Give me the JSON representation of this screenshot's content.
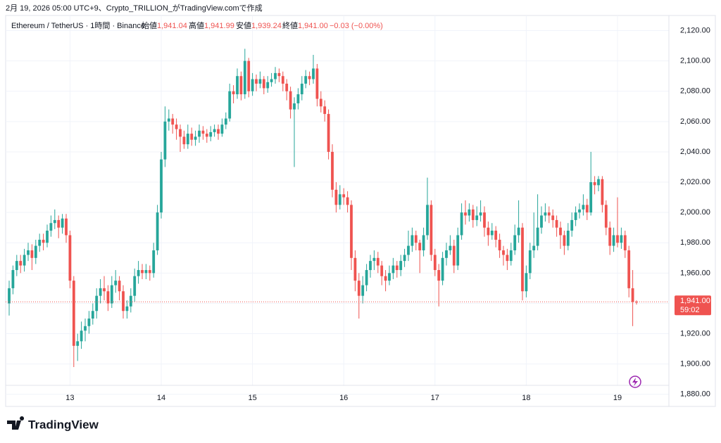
{
  "caption": "2月 19, 2026 05:00 UTC+9、Crypto_TRILLION_がTradingView.comで作成",
  "header": {
    "symbol": "Ethereum / TetherUS · 1時間 · Binance",
    "open_label": "始値",
    "open": "1,941.04",
    "high_label": "高値",
    "high": "1,941.99",
    "low_label": "安値",
    "low": "1,939.24",
    "close_label": "終値",
    "close": "1,941.00",
    "change": "−0.03 (−0.00%)"
  },
  "chart_data": {
    "type": "candlestick",
    "up_color": "#26a69a",
    "down_color": "#ef5350",
    "grid": true,
    "ylim": [
      1872,
      2130
    ],
    "yticks": [
      {
        "value": 1880,
        "label": "1,880.00"
      },
      {
        "value": 1900,
        "label": "1,900.00"
      },
      {
        "value": 1920,
        "label": "1,920.00"
      },
      {
        "value": 1940,
        "label": "1,940.00"
      },
      {
        "value": 1960,
        "label": "1,960.00"
      },
      {
        "value": 1980,
        "label": "1,980.00"
      },
      {
        "value": 2000,
        "label": "2,000.00"
      },
      {
        "value": 2020,
        "label": "2,020.00"
      },
      {
        "value": 2040,
        "label": "2,040.00"
      },
      {
        "value": 2060,
        "label": "2,060.00"
      },
      {
        "value": 2080,
        "label": "2,080.00"
      },
      {
        "value": 2100,
        "label": "2,100.00"
      },
      {
        "value": 2120,
        "label": "2,120.00"
      }
    ],
    "last_price": {
      "value": 1941.0,
      "label": "1,941.00",
      "countdown": "59:02"
    },
    "categories": [
      null,
      null,
      null,
      null,
      null,
      null,
      null,
      null,
      null,
      null,
      null,
      null,
      null,
      null,
      null,
      null,
      "13",
      null,
      null,
      null,
      null,
      null,
      null,
      null,
      null,
      null,
      null,
      null,
      null,
      null,
      null,
      null,
      null,
      null,
      null,
      null,
      null,
      null,
      null,
      null,
      "14",
      null,
      null,
      null,
      null,
      null,
      null,
      null,
      null,
      null,
      null,
      null,
      null,
      null,
      null,
      null,
      null,
      null,
      null,
      null,
      null,
      null,
      null,
      null,
      "15",
      null,
      null,
      null,
      null,
      null,
      null,
      null,
      null,
      null,
      null,
      null,
      null,
      null,
      null,
      null,
      null,
      null,
      null,
      null,
      null,
      null,
      null,
      null,
      "16",
      null,
      null,
      null,
      null,
      null,
      null,
      null,
      null,
      null,
      null,
      null,
      null,
      null,
      null,
      null,
      null,
      null,
      null,
      null,
      null,
      null,
      null,
      null,
      "17",
      null,
      null,
      null,
      null,
      null,
      null,
      null,
      null,
      null,
      null,
      null,
      null,
      null,
      null,
      null,
      null,
      null,
      null,
      null,
      null,
      null,
      null,
      null,
      "18",
      null,
      null,
      null,
      null,
      null,
      null,
      null,
      null,
      null,
      null,
      null,
      null,
      null,
      null,
      null,
      null,
      null,
      null,
      null,
      null,
      null,
      null,
      null,
      "19",
      null,
      null,
      null,
      null,
      null
    ],
    "ohlc": [
      [
        1940,
        1955,
        1932,
        1950
      ],
      [
        1950,
        1965,
        1946,
        1962
      ],
      [
        1962,
        1972,
        1958,
        1968
      ],
      [
        1968,
        1972,
        1960,
        1965
      ],
      [
        1965,
        1976,
        1961,
        1972
      ],
      [
        1972,
        1980,
        1968,
        1975
      ],
      [
        1975,
        1979,
        1962,
        1970
      ],
      [
        1970,
        1982,
        1966,
        1978
      ],
      [
        1978,
        1986,
        1974,
        1982
      ],
      [
        1982,
        1986,
        1975,
        1980
      ],
      [
        1980,
        1992,
        1977,
        1988
      ],
      [
        1988,
        1998,
        1984,
        1993
      ],
      [
        1993,
        2002,
        1989,
        1995
      ],
      [
        1995,
        1998,
        1983,
        1990
      ],
      [
        1990,
        1999,
        1986,
        1996
      ],
      [
        1996,
        1999,
        1980,
        1985
      ],
      [
        1985,
        1988,
        1950,
        1955
      ],
      [
        1955,
        1958,
        1898,
        1912
      ],
      [
        1912,
        1920,
        1902,
        1915
      ],
      [
        1915,
        1928,
        1910,
        1922
      ],
      [
        1922,
        1930,
        1915,
        1925
      ],
      [
        1925,
        1935,
        1920,
        1930
      ],
      [
        1930,
        1940,
        1926,
        1935
      ],
      [
        1935,
        1950,
        1930,
        1945
      ],
      [
        1945,
        1956,
        1940,
        1950
      ],
      [
        1950,
        1958,
        1942,
        1948
      ],
      [
        1948,
        1952,
        1935,
        1940
      ],
      [
        1940,
        1958,
        1937,
        1952
      ],
      [
        1952,
        1962,
        1947,
        1955
      ],
      [
        1955,
        1958,
        1942,
        1948
      ],
      [
        1948,
        1952,
        1930,
        1935
      ],
      [
        1935,
        1942,
        1930,
        1938
      ],
      [
        1938,
        1950,
        1934,
        1945
      ],
      [
        1945,
        1963,
        1941,
        1958
      ],
      [
        1958,
        1968,
        1953,
        1962
      ],
      [
        1962,
        1966,
        1956,
        1960
      ],
      [
        1960,
        1966,
        1956,
        1962
      ],
      [
        1962,
        1965,
        1955,
        1960
      ],
      [
        1960,
        1980,
        1957,
        1975
      ],
      [
        1975,
        2005,
        1972,
        2000
      ],
      [
        2000,
        2040,
        1996,
        2035
      ],
      [
        2035,
        2070,
        2030,
        2060
      ],
      [
        2060,
        2068,
        2054,
        2062
      ],
      [
        2062,
        2065,
        2052,
        2058
      ],
      [
        2058,
        2062,
        2048,
        2055
      ],
      [
        2055,
        2058,
        2040,
        2050
      ],
      [
        2050,
        2054,
        2042,
        2045
      ],
      [
        2045,
        2058,
        2042,
        2052
      ],
      [
        2052,
        2056,
        2044,
        2048
      ],
      [
        2048,
        2054,
        2044,
        2050
      ],
      [
        2050,
        2058,
        2046,
        2054
      ],
      [
        2054,
        2057,
        2048,
        2052
      ],
      [
        2052,
        2055,
        2046,
        2050
      ],
      [
        2050,
        2057,
        2047,
        2053
      ],
      [
        2053,
        2058,
        2050,
        2055
      ],
      [
        2055,
        2058,
        2048,
        2052
      ],
      [
        2052,
        2062,
        2050,
        2058
      ],
      [
        2058,
        2066,
        2055,
        2062
      ],
      [
        2062,
        2085,
        2060,
        2080
      ],
      [
        2080,
        2084,
        2072,
        2078
      ],
      [
        2078,
        2095,
        2075,
        2090
      ],
      [
        2090,
        2093,
        2074,
        2078
      ],
      [
        2078,
        2108,
        2075,
        2100
      ],
      [
        2100,
        2102,
        2076,
        2080
      ],
      [
        2080,
        2092,
        2077,
        2088
      ],
      [
        2088,
        2091,
        2080,
        2085
      ],
      [
        2085,
        2093,
        2082,
        2088
      ],
      [
        2088,
        2090,
        2078,
        2082
      ],
      [
        2082,
        2090,
        2079,
        2086
      ],
      [
        2086,
        2092,
        2083,
        2088
      ],
      [
        2088,
        2096,
        2085,
        2092
      ],
      [
        2092,
        2095,
        2086,
        2090
      ],
      [
        2090,
        2093,
        2080,
        2085
      ],
      [
        2085,
        2088,
        2074,
        2080
      ],
      [
        2080,
        2083,
        2062,
        2068
      ],
      [
        2068,
        2076,
        2030,
        2072
      ],
      [
        2072,
        2082,
        2068,
        2078
      ],
      [
        2078,
        2090,
        2074,
        2085
      ],
      [
        2085,
        2094,
        2082,
        2090
      ],
      [
        2090,
        2093,
        2084,
        2088
      ],
      [
        2088,
        2104,
        2085,
        2095
      ],
      [
        2095,
        2098,
        2070,
        2075
      ],
      [
        2075,
        2080,
        2066,
        2070
      ],
      [
        2070,
        2074,
        2060,
        2065
      ],
      [
        2065,
        2068,
        2035,
        2040
      ],
      [
        2040,
        2045,
        2010,
        2015
      ],
      [
        2015,
        2020,
        2000,
        2005
      ],
      [
        2005,
        2018,
        2002,
        2012
      ],
      [
        2012,
        2016,
        2005,
        2010
      ],
      [
        2010,
        2014,
        2000,
        2005
      ],
      [
        2005,
        2008,
        1962,
        1970
      ],
      [
        1970,
        1975,
        1948,
        1955
      ],
      [
        1955,
        1960,
        1930,
        1945
      ],
      [
        1945,
        1958,
        1940,
        1952
      ],
      [
        1952,
        1966,
        1948,
        1962
      ],
      [
        1962,
        1972,
        1957,
        1968
      ],
      [
        1968,
        1975,
        1962,
        1970
      ],
      [
        1970,
        1974,
        1960,
        1965
      ],
      [
        1965,
        1968,
        1952,
        1958
      ],
      [
        1958,
        1962,
        1948,
        1955
      ],
      [
        1955,
        1965,
        1952,
        1960
      ],
      [
        1960,
        1970,
        1956,
        1965
      ],
      [
        1965,
        1968,
        1957,
        1962
      ],
      [
        1962,
        1972,
        1958,
        1968
      ],
      [
        1968,
        1976,
        1964,
        1972
      ],
      [
        1972,
        1988,
        1968,
        1978
      ],
      [
        1978,
        1990,
        1974,
        1985
      ],
      [
        1985,
        1988,
        1975,
        1980
      ],
      [
        1980,
        1982,
        1960,
        1975
      ],
      [
        1975,
        1990,
        1971,
        1985
      ],
      [
        1985,
        2023,
        1982,
        2005
      ],
      [
        2005,
        2008,
        1968,
        1972
      ],
      [
        1972,
        1976,
        1958,
        1962
      ],
      [
        1962,
        1966,
        1938,
        1955
      ],
      [
        1955,
        1974,
        1952,
        1970
      ],
      [
        1970,
        1980,
        1965,
        1975
      ],
      [
        1975,
        1985,
        1972,
        1978
      ],
      [
        1978,
        1982,
        1960,
        1965
      ],
      [
        1965,
        1990,
        1962,
        1985
      ],
      [
        1985,
        2006,
        1982,
        2000
      ],
      [
        2000,
        2008,
        1992,
        1998
      ],
      [
        1998,
        2006,
        1994,
        2002
      ],
      [
        2002,
        2005,
        1990,
        1995
      ],
      [
        1995,
        2004,
        1991,
        1998
      ],
      [
        1998,
        2008,
        1994,
        2000
      ],
      [
        2000,
        2004,
        1984,
        1990
      ],
      [
        1990,
        1994,
        1978,
        1985
      ],
      [
        1985,
        1993,
        1982,
        1988
      ],
      [
        1988,
        1991,
        1977,
        1982
      ],
      [
        1982,
        1986,
        1970,
        1975
      ],
      [
        1975,
        1978,
        1965,
        1972
      ],
      [
        1972,
        1976,
        1962,
        1968
      ],
      [
        1968,
        1980,
        1965,
        1975
      ],
      [
        1975,
        1992,
        1972,
        1985
      ],
      [
        1985,
        2008,
        1980,
        1990
      ],
      [
        1990,
        1993,
        1942,
        1948
      ],
      [
        1948,
        1965,
        1944,
        1960
      ],
      [
        1960,
        1980,
        1956,
        1975
      ],
      [
        1975,
        2000,
        1970,
        1978
      ],
      [
        1978,
        2012,
        1975,
        1990
      ],
      [
        1990,
        2004,
        1986,
        1998
      ],
      [
        1998,
        2006,
        1994,
        2000
      ],
      [
        2000,
        2004,
        1993,
        1998
      ],
      [
        1998,
        2002,
        1990,
        1995
      ],
      [
        1995,
        1998,
        1984,
        1990
      ],
      [
        1990,
        1994,
        1976,
        1985
      ],
      [
        1985,
        1988,
        1972,
        1978
      ],
      [
        1978,
        1993,
        1975,
        1988
      ],
      [
        1988,
        2000,
        1984,
        1995
      ],
      [
        1995,
        2004,
        1991,
        2000
      ],
      [
        2000,
        2006,
        1996,
        2002
      ],
      [
        2002,
        2012,
        1998,
        2005
      ],
      [
        2005,
        2009,
        1995,
        2000
      ],
      [
        2000,
        2040,
        1998,
        2020
      ],
      [
        2020,
        2024,
        2012,
        2018
      ],
      [
        2018,
        2024,
        2014,
        2022
      ],
      [
        2022,
        2024,
        2000,
        2005
      ],
      [
        2005,
        2008,
        1985,
        1990
      ],
      [
        1990,
        1994,
        1972,
        1978
      ],
      [
        1978,
        1990,
        1974,
        1985
      ],
      [
        1985,
        2010,
        1977,
        1980
      ],
      [
        1980,
        1990,
        1976,
        1985
      ],
      [
        1985,
        1988,
        1970,
        1975
      ],
      [
        1975,
        1978,
        1944,
        1950
      ],
      [
        1950,
        1962,
        1925,
        1941
      ],
      [
        1941.04,
        1941.99,
        1939.24,
        1941.0
      ]
    ]
  },
  "footer": {
    "brand": "TradingView"
  }
}
